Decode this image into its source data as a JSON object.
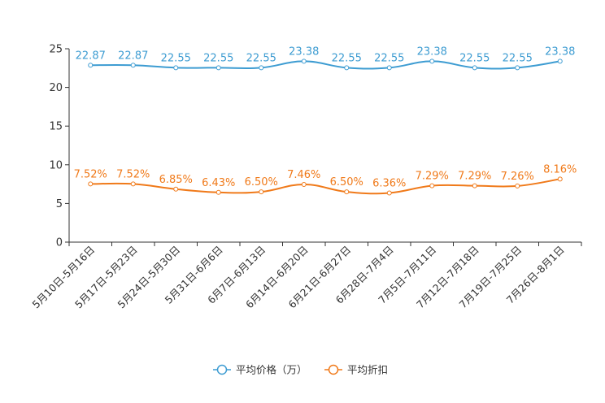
{
  "chart_data": {
    "type": "line",
    "title": "",
    "xlabel": "",
    "ylabel": "",
    "ylim": [
      0,
      25
    ],
    "yticks": [
      "0",
      "5",
      "10",
      "15",
      "20",
      "25"
    ],
    "grid": false,
    "legend_position": "bottom-center",
    "categories": [
      "5月10日-5月16日",
      "5月17日-5月23日",
      "5月24日-5月30日",
      "5月31日-6月6日",
      "6月7日-6月13日",
      "6月14日-6月20日",
      "6月21日-6月27日",
      "6月28日-7月4日",
      "7月5日-7月11日",
      "7月12日-7月18日",
      "7月19日-7月25日",
      "7月26日-8月1日"
    ],
    "series": [
      {
        "name": "平均价格（万）",
        "color": "#3d9cd2",
        "values": [
          22.87,
          22.87,
          22.55,
          22.55,
          22.55,
          23.38,
          22.55,
          22.55,
          23.38,
          22.55,
          22.55,
          23.38
        ],
        "labels": [
          "22.87",
          "22.87",
          "22.55",
          "22.55",
          "22.55",
          "23.38",
          "22.55",
          "22.55",
          "23.38",
          "22.55",
          "22.55",
          "23.38"
        ]
      },
      {
        "name": "平均折扣",
        "color": "#f07a1a",
        "values": [
          7.52,
          7.52,
          6.85,
          6.43,
          6.5,
          7.46,
          6.5,
          6.36,
          7.29,
          7.29,
          7.26,
          8.16
        ],
        "labels": [
          "7.52%",
          "7.52%",
          "6.85%",
          "6.43%",
          "6.50%",
          "7.46%",
          "6.50%",
          "6.36%",
          "7.29%",
          "7.29%",
          "7.26%",
          "8.16%"
        ]
      }
    ]
  }
}
